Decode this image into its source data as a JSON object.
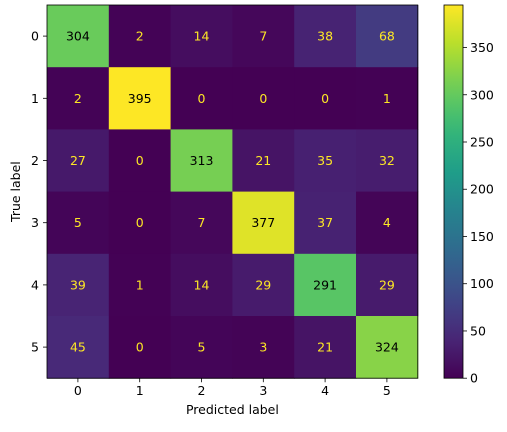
{
  "chart_data": {
    "type": "heatmap",
    "title": "",
    "xlabel": "Predicted label",
    "ylabel": "True label",
    "x_categories": [
      "0",
      "1",
      "2",
      "3",
      "4",
      "5"
    ],
    "y_categories": [
      "0",
      "1",
      "2",
      "3",
      "4",
      "5"
    ],
    "matrix": [
      [
        304,
        2,
        14,
        7,
        38,
        68
      ],
      [
        2,
        395,
        0,
        0,
        0,
        1
      ],
      [
        27,
        0,
        313,
        21,
        35,
        32
      ],
      [
        5,
        0,
        7,
        377,
        37,
        4
      ],
      [
        39,
        1,
        14,
        29,
        291,
        29
      ],
      [
        45,
        0,
        5,
        3,
        21,
        324
      ]
    ],
    "colormap": "viridis",
    "vmin": 0,
    "vmax": 395,
    "colorbar_ticks": [
      0,
      50,
      100,
      150,
      200,
      250,
      300,
      350
    ],
    "text_color_light": "#fde725",
    "text_color_dark": "#000000",
    "grid": false
  }
}
